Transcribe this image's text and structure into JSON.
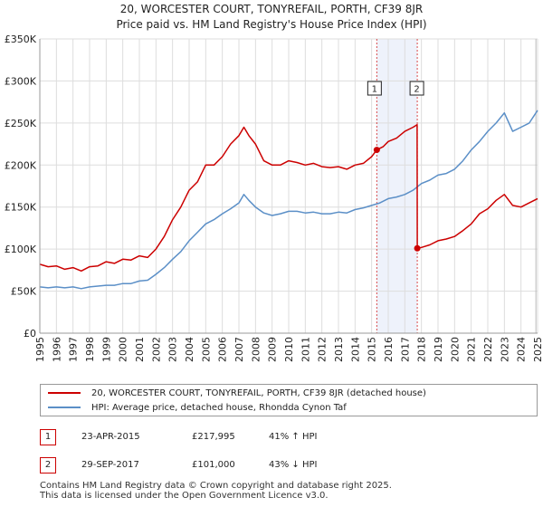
{
  "title_line1": "20, WORCESTER COURT, TONYREFAIL, PORTH, CF39 8JR",
  "title_line2": "Price paid vs. HM Land Registry's House Price Index (HPI)",
  "legend": {
    "series1": "20, WORCESTER COURT, TONYREFAIL, PORTH, CF39 8JR (detached house)",
    "series2": "HPI: Average price, detached house, Rhondda Cynon Taf"
  },
  "annotations": [
    {
      "num": "1",
      "date": "23-APR-2015",
      "price": "£217,995",
      "hpi": "41% ↑ HPI"
    },
    {
      "num": "2",
      "date": "29-SEP-2017",
      "price": "£101,000",
      "hpi": "43% ↓ HPI"
    }
  ],
  "footer": {
    "line1": "Contains HM Land Registry data © Crown copyright and database right 2025.",
    "line2": "This data is licensed under the Open Government Licence v3.0."
  },
  "colors": {
    "property": "#cc0000",
    "hpi": "#5b8fc7",
    "shade": "#eef2fb",
    "grid": "#dddddd"
  },
  "chart_data": {
    "type": "line",
    "title": "20, WORCESTER COURT, TONYREFAIL, PORTH, CF39 8JR — Price paid vs. HM Land Registry's House Price Index (HPI)",
    "xlim": [
      1995,
      2025
    ],
    "ylim": [
      0,
      350000
    ],
    "xticks": [
      1995,
      1996,
      1997,
      1998,
      1999,
      2000,
      2001,
      2002,
      2003,
      2004,
      2005,
      2006,
      2007,
      2008,
      2009,
      2010,
      2011,
      2012,
      2013,
      2014,
      2015,
      2016,
      2017,
      2018,
      2019,
      2020,
      2021,
      2022,
      2023,
      2024,
      2025
    ],
    "yticks": [
      0,
      50000,
      100000,
      150000,
      200000,
      250000,
      300000,
      350000
    ],
    "ytick_labels": [
      "£0",
      "£50K",
      "£100K",
      "£150K",
      "£200K",
      "£250K",
      "£300K",
      "£350K"
    ],
    "grid": true,
    "legend_position": "below",
    "shaded_region": [
      2015.31,
      2017.75
    ],
    "markers": [
      {
        "label": "1",
        "x": 2015.31,
        "y": 217995
      },
      {
        "label": "2",
        "x": 2017.75,
        "y": 101000
      }
    ],
    "series": [
      {
        "name": "20, WORCESTER COURT, TONYREFAIL, PORTH, CF39 8JR (detached house)",
        "color": "#cc0000",
        "x": [
          1995.0,
          1995.5,
          1996.0,
          1996.5,
          1997.0,
          1997.5,
          1998.0,
          1998.5,
          1999.0,
          1999.5,
          2000.0,
          2000.5,
          2001.0,
          2001.5,
          2002.0,
          2002.5,
          2003.0,
          2003.5,
          2004.0,
          2004.5,
          2005.0,
          2005.5,
          2006.0,
          2006.5,
          2007.0,
          2007.3,
          2007.6,
          2008.0,
          2008.5,
          2009.0,
          2009.5,
          2010.0,
          2010.5,
          2011.0,
          2011.5,
          2012.0,
          2012.5,
          2013.0,
          2013.5,
          2014.0,
          2014.5,
          2015.0,
          2015.31,
          2015.7,
          2016.0,
          2016.5,
          2017.0,
          2017.5,
          2017.74,
          2017.75,
          2018.0,
          2018.5,
          2019.0,
          2019.5,
          2020.0,
          2020.5,
          2021.0,
          2021.5,
          2022.0,
          2022.5,
          2023.0,
          2023.5,
          2024.0,
          2024.5,
          2025.0
        ],
        "y": [
          82000,
          79000,
          80000,
          76000,
          78000,
          74000,
          79000,
          80000,
          85000,
          83000,
          88000,
          87000,
          92000,
          90000,
          100000,
          115000,
          135000,
          150000,
          170000,
          180000,
          200000,
          200000,
          210000,
          225000,
          235000,
          245000,
          235000,
          225000,
          205000,
          200000,
          200000,
          205000,
          203000,
          200000,
          202000,
          198000,
          197000,
          198000,
          195000,
          200000,
          202000,
          210000,
          217995,
          222000,
          228000,
          232000,
          240000,
          245000,
          248000,
          101000,
          102000,
          105000,
          110000,
          112000,
          115000,
          122000,
          130000,
          142000,
          148000,
          158000,
          165000,
          152000,
          150000,
          155000,
          160000
        ]
      },
      {
        "name": "HPI: Average price, detached house, Rhondda Cynon Taf",
        "color": "#5b8fc7",
        "x": [
          1995.0,
          1995.5,
          1996.0,
          1996.5,
          1997.0,
          1997.5,
          1998.0,
          1998.5,
          1999.0,
          1999.5,
          2000.0,
          2000.5,
          2001.0,
          2001.5,
          2002.0,
          2002.5,
          2003.0,
          2003.5,
          2004.0,
          2004.5,
          2005.0,
          2005.5,
          2006.0,
          2006.5,
          2007.0,
          2007.3,
          2007.6,
          2008.0,
          2008.5,
          2009.0,
          2009.5,
          2010.0,
          2010.5,
          2011.0,
          2011.5,
          2012.0,
          2012.5,
          2013.0,
          2013.5,
          2014.0,
          2014.5,
          2015.0,
          2015.5,
          2016.0,
          2016.5,
          2017.0,
          2017.5,
          2018.0,
          2018.5,
          2019.0,
          2019.5,
          2020.0,
          2020.5,
          2021.0,
          2021.5,
          2022.0,
          2022.5,
          2023.0,
          2023.5,
          2024.0,
          2024.5,
          2025.0
        ],
        "y": [
          55000,
          54000,
          55000,
          54000,
          55000,
          53000,
          55000,
          56000,
          57000,
          57000,
          59000,
          59000,
          62000,
          63000,
          70000,
          78000,
          88000,
          97000,
          110000,
          120000,
          130000,
          135000,
          142000,
          148000,
          155000,
          165000,
          158000,
          150000,
          143000,
          140000,
          142000,
          145000,
          145000,
          143000,
          144000,
          142000,
          142000,
          144000,
          143000,
          147000,
          149000,
          152000,
          155000,
          160000,
          162000,
          165000,
          170000,
          178000,
          182000,
          188000,
          190000,
          195000,
          205000,
          218000,
          228000,
          240000,
          250000,
          262000,
          240000,
          245000,
          250000,
          265000
        ]
      }
    ]
  }
}
